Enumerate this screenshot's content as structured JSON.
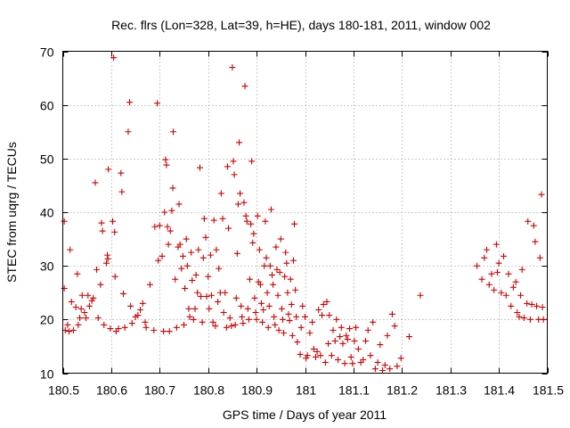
{
  "chart_data": {
    "type": "scatter",
    "title": "Rec. flrs (Lon=328, Lat=39, h=HE), days 180-181, 2011, window 002",
    "xlabel": "GPS time / Days of year 2011",
    "ylabel": "STEC from uqrg / TECUs",
    "xlim": [
      180.5,
      181.5
    ],
    "ylim": [
      10,
      70
    ],
    "xticks": [
      180.5,
      180.6,
      180.7,
      180.8,
      180.9,
      181.0,
      181.1,
      181.2,
      181.3,
      181.4,
      181.5
    ],
    "xtick_labels": [
      "180.5",
      "180.6",
      "180.7",
      "180.8",
      "180.9",
      "181",
      "181.1",
      "181.2",
      "181.3",
      "181.4",
      "181.5"
    ],
    "yticks": [
      10,
      20,
      30,
      40,
      50,
      60,
      70
    ],
    "ytick_labels": [
      "10",
      "20",
      "30",
      "40",
      "50",
      "60",
      "70"
    ],
    "grid": true,
    "marker": "+",
    "color": "#cc0000",
    "points": [
      [
        180.503,
        38.3
      ],
      [
        180.503,
        25.8
      ],
      [
        180.505,
        18.0
      ],
      [
        180.51,
        19.0
      ],
      [
        180.513,
        17.8
      ],
      [
        180.515,
        33.0
      ],
      [
        180.518,
        23.3
      ],
      [
        180.522,
        18.0
      ],
      [
        180.527,
        22.3
      ],
      [
        180.53,
        28.5
      ],
      [
        180.532,
        19.0
      ],
      [
        180.535,
        20.3
      ],
      [
        180.538,
        22.0
      ],
      [
        180.54,
        24.5
      ],
      [
        180.545,
        21.3
      ],
      [
        180.548,
        20.3
      ],
      [
        180.552,
        24.5
      ],
      [
        180.555,
        22.5
      ],
      [
        180.56,
        23.5
      ],
      [
        180.563,
        24.0
      ],
      [
        180.567,
        45.5
      ],
      [
        180.57,
        29.3
      ],
      [
        180.573,
        20.3
      ],
      [
        180.578,
        26.5
      ],
      [
        180.58,
        38.0
      ],
      [
        180.582,
        36.5
      ],
      [
        180.585,
        19.0
      ],
      [
        180.59,
        30.5
      ],
      [
        180.592,
        32.0
      ],
      [
        180.593,
        31.3
      ],
      [
        180.594,
        48.0
      ],
      [
        180.598,
        18.3
      ],
      [
        180.603,
        38.3
      ],
      [
        180.605,
        68.8
      ],
      [
        180.607,
        36.3
      ],
      [
        180.608,
        28.0
      ],
      [
        180.61,
        17.8
      ],
      [
        180.615,
        18.3
      ],
      [
        180.62,
        47.3
      ],
      [
        180.622,
        43.8
      ],
      [
        180.625,
        24.8
      ],
      [
        180.628,
        18.5
      ],
      [
        180.635,
        55.0
      ],
      [
        180.638,
        60.5
      ],
      [
        180.64,
        22.5
      ],
      [
        180.643,
        19.3
      ],
      [
        180.65,
        20.5
      ],
      [
        180.655,
        20.8
      ],
      [
        180.66,
        21.8
      ],
      [
        180.665,
        23.0
      ],
      [
        180.67,
        19.5
      ],
      [
        180.672,
        18.5
      ],
      [
        180.68,
        26.5
      ],
      [
        180.688,
        18.0
      ],
      [
        180.69,
        37.3
      ],
      [
        180.695,
        60.3
      ],
      [
        180.697,
        31.0
      ],
      [
        180.7,
        37.5
      ],
      [
        180.705,
        31.8
      ],
      [
        180.708,
        17.8
      ],
      [
        180.71,
        40.0
      ],
      [
        180.712,
        49.8
      ],
      [
        180.714,
        48.8
      ],
      [
        180.716,
        37.3
      ],
      [
        180.718,
        34.0
      ],
      [
        180.72,
        17.8
      ],
      [
        180.722,
        36.5
      ],
      [
        180.725,
        40.3
      ],
      [
        180.727,
        44.5
      ],
      [
        180.728,
        55.0
      ],
      [
        180.732,
        27.5
      ],
      [
        180.735,
        18.5
      ],
      [
        180.738,
        33.5
      ],
      [
        180.74,
        41.5
      ],
      [
        180.742,
        34.0
      ],
      [
        180.745,
        29.5
      ],
      [
        180.748,
        31.8
      ],
      [
        180.75,
        19.0
      ],
      [
        180.752,
        25.8
      ],
      [
        180.755,
        35.0
      ],
      [
        180.757,
        30.0
      ],
      [
        180.76,
        22.0
      ],
      [
        180.762,
        20.5
      ],
      [
        180.765,
        32.5
      ],
      [
        180.767,
        27.3
      ],
      [
        180.77,
        20.0
      ],
      [
        180.773,
        22.0
      ],
      [
        180.775,
        28.3
      ],
      [
        180.778,
        25.0
      ],
      [
        180.78,
        33.0
      ],
      [
        180.783,
        48.3
      ],
      [
        180.785,
        24.3
      ],
      [
        180.788,
        19.5
      ],
      [
        180.79,
        31.5
      ],
      [
        180.792,
        38.8
      ],
      [
        180.795,
        35.3
      ],
      [
        180.797,
        24.3
      ],
      [
        180.8,
        28.0
      ],
      [
        180.802,
        22.0
      ],
      [
        180.805,
        32.0
      ],
      [
        180.807,
        24.5
      ],
      [
        180.81,
        19.5
      ],
      [
        180.812,
        38.5
      ],
      [
        180.815,
        18.8
      ],
      [
        180.817,
        33.0
      ],
      [
        180.82,
        23.3
      ],
      [
        180.822,
        29.5
      ],
      [
        180.825,
        25.0
      ],
      [
        180.827,
        43.5
      ],
      [
        180.83,
        38.8
      ],
      [
        180.832,
        21.3
      ],
      [
        180.835,
        25.0
      ],
      [
        180.838,
        18.5
      ],
      [
        180.84,
        48.5
      ],
      [
        180.842,
        37.0
      ],
      [
        180.845,
        20.3
      ],
      [
        180.848,
        18.8
      ],
      [
        180.85,
        67.0
      ],
      [
        180.852,
        49.5
      ],
      [
        180.854,
        47.0
      ],
      [
        180.856,
        19.0
      ],
      [
        180.858,
        24.0
      ],
      [
        180.86,
        32.3
      ],
      [
        180.862,
        41.5
      ],
      [
        180.864,
        53.0
      ],
      [
        180.866,
        43.5
      ],
      [
        180.868,
        22.5
      ],
      [
        180.87,
        20.5
      ],
      [
        180.872,
        19.3
      ],
      [
        180.874,
        41.8
      ],
      [
        180.876,
        63.5
      ],
      [
        180.878,
        39.3
      ],
      [
        180.88,
        38.3
      ],
      [
        180.882,
        22.0
      ],
      [
        180.884,
        20.0
      ],
      [
        180.886,
        27.5
      ],
      [
        180.888,
        37.8
      ],
      [
        180.89,
        49.5
      ],
      [
        180.892,
        34.3
      ],
      [
        180.894,
        36.0
      ],
      [
        180.896,
        24.0
      ],
      [
        180.898,
        21.3
      ],
      [
        180.9,
        20.0
      ],
      [
        180.902,
        39.3
      ],
      [
        180.904,
        27.0
      ],
      [
        180.906,
        33.0
      ],
      [
        180.908,
        26.5
      ],
      [
        180.91,
        23.0
      ],
      [
        180.912,
        19.5
      ],
      [
        180.914,
        21.8
      ],
      [
        180.916,
        30.0
      ],
      [
        180.918,
        38.3
      ],
      [
        180.92,
        31.5
      ],
      [
        180.922,
        25.0
      ],
      [
        180.924,
        18.5
      ],
      [
        180.926,
        22.5
      ],
      [
        180.928,
        30.0
      ],
      [
        180.93,
        40.5
      ],
      [
        180.932,
        28.3
      ],
      [
        180.934,
        26.5
      ],
      [
        180.936,
        20.5
      ],
      [
        180.938,
        19.0
      ],
      [
        180.94,
        33.5
      ],
      [
        180.942,
        29.3
      ],
      [
        180.944,
        24.5
      ],
      [
        180.946,
        18.0
      ],
      [
        180.948,
        28.8
      ],
      [
        180.95,
        35.0
      ],
      [
        180.952,
        22.0
      ],
      [
        180.954,
        20.0
      ],
      [
        180.956,
        17.5
      ],
      [
        180.958,
        28.0
      ],
      [
        180.96,
        32.5
      ],
      [
        180.962,
        30.5
      ],
      [
        180.964,
        25.0
      ],
      [
        180.966,
        21.0
      ],
      [
        180.968,
        19.8
      ],
      [
        180.97,
        27.5
      ],
      [
        180.972,
        22.8
      ],
      [
        180.974,
        17.0
      ],
      [
        180.976,
        31.0
      ],
      [
        180.978,
        37.8
      ],
      [
        180.98,
        25.5
      ],
      [
        180.982,
        20.5
      ],
      [
        180.984,
        15.8
      ],
      [
        180.99,
        13.5
      ],
      [
        180.992,
        18.5
      ],
      [
        180.995,
        22.5
      ],
      [
        181.0,
        20.5
      ],
      [
        181.002,
        12.8
      ],
      [
        181.005,
        13.3
      ],
      [
        181.01,
        17.5
      ],
      [
        181.015,
        19.5
      ],
      [
        181.018,
        14.5
      ],
      [
        181.022,
        13.0
      ],
      [
        181.025,
        14.0
      ],
      [
        181.028,
        21.8
      ],
      [
        181.032,
        13.3
      ],
      [
        181.035,
        20.8
      ],
      [
        181.038,
        22.8
      ],
      [
        181.042,
        12.0
      ],
      [
        181.045,
        23.3
      ],
      [
        181.048,
        15.5
      ],
      [
        181.05,
        20.8
      ],
      [
        181.055,
        13.3
      ],
      [
        181.058,
        18.0
      ],
      [
        181.062,
        16.0
      ],
      [
        181.065,
        20.0
      ],
      [
        181.068,
        12.5
      ],
      [
        181.072,
        16.8
      ],
      [
        181.075,
        18.5
      ],
      [
        181.078,
        15.5
      ],
      [
        181.082,
        11.8
      ],
      [
        181.085,
        17.0
      ],
      [
        181.088,
        16.3
      ],
      [
        181.092,
        18.3
      ],
      [
        181.095,
        13.0
      ],
      [
        181.098,
        11.8
      ],
      [
        181.102,
        16.0
      ],
      [
        181.105,
        18.5
      ],
      [
        181.11,
        14.5
      ],
      [
        181.115,
        12.0
      ],
      [
        181.12,
        12.5
      ],
      [
        181.125,
        16.0
      ],
      [
        181.13,
        18.0
      ],
      [
        181.135,
        13.3
      ],
      [
        181.14,
        19.5
      ],
      [
        181.145,
        10.8
      ],
      [
        181.15,
        12.0
      ],
      [
        181.155,
        15.3
      ],
      [
        181.16,
        10.5
      ],
      [
        181.165,
        11.5
      ],
      [
        181.17,
        17.0
      ],
      [
        181.175,
        10.8
      ],
      [
        181.18,
        21.0
      ],
      [
        181.185,
        18.8
      ],
      [
        181.19,
        11.3
      ],
      [
        181.198,
        12.8
      ],
      [
        181.215,
        16.8
      ],
      [
        181.238,
        24.5
      ],
      [
        181.355,
        30.0
      ],
      [
        181.365,
        27.5
      ],
      [
        181.37,
        31.5
      ],
      [
        181.375,
        33.0
      ],
      [
        181.38,
        26.5
      ],
      [
        181.385,
        28.5
      ],
      [
        181.39,
        25.5
      ],
      [
        181.395,
        34.0
      ],
      [
        181.397,
        28.8
      ],
      [
        181.4,
        30.5
      ],
      [
        181.405,
        25.0
      ],
      [
        181.41,
        31.8
      ],
      [
        181.415,
        24.5
      ],
      [
        181.42,
        28.5
      ],
      [
        181.425,
        22.5
      ],
      [
        181.43,
        26.0
      ],
      [
        181.435,
        27.0
      ],
      [
        181.438,
        21.3
      ],
      [
        181.442,
        20.5
      ],
      [
        181.445,
        24.5
      ],
      [
        181.448,
        29.3
      ],
      [
        181.452,
        20.3
      ],
      [
        181.458,
        23.0
      ],
      [
        181.46,
        38.3
      ],
      [
        181.465,
        20.0
      ],
      [
        181.468,
        22.8
      ],
      [
        181.472,
        37.5
      ],
      [
        181.475,
        34.5
      ],
      [
        181.478,
        22.5
      ],
      [
        181.482,
        20.0
      ],
      [
        181.485,
        31.5
      ],
      [
        181.488,
        43.3
      ],
      [
        181.49,
        22.3
      ],
      [
        181.492,
        20.0
      ]
    ]
  }
}
